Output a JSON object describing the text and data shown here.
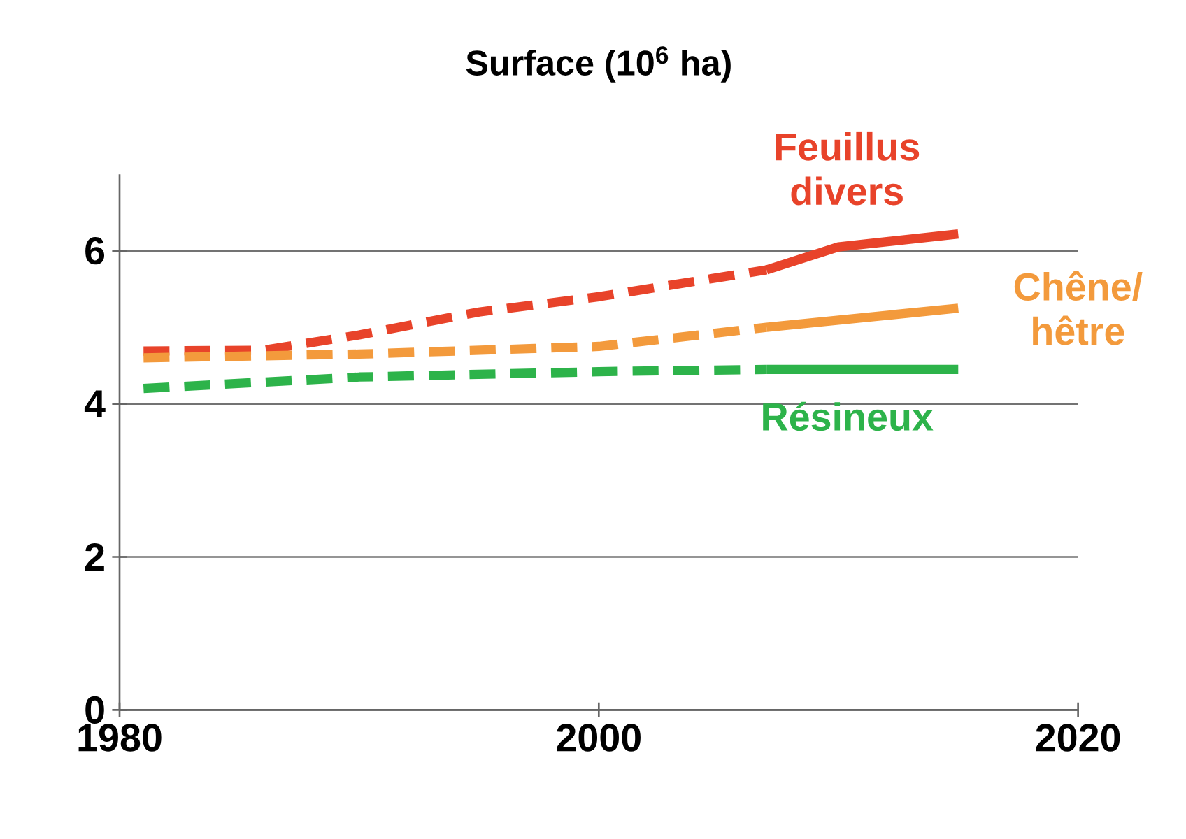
{
  "chart_data": {
    "type": "line",
    "title": "Surface (10$^{6}$ ha)",
    "xlim": [
      1980,
      2020
    ],
    "xticks": [
      1980,
      2000,
      2020
    ],
    "ylim": [
      0,
      7
    ],
    "yticks": [
      0,
      2,
      4,
      6
    ],
    "grid": "y",
    "legend": false,
    "marker": "none",
    "series": [
      {
        "color": "#e8432a",
        "line_style": "dashed",
        "x": [
          1981,
          1986,
          1990,
          1995,
          2000,
          2007
        ],
        "values": [
          4.69,
          4.7,
          4.9,
          5.2,
          5.4,
          5.75
        ]
      },
      {
        "name": "Feuillus divers",
        "color": "#e8432a",
        "line_style": "solid",
        "x": [
          2007,
          2010,
          2015
        ],
        "values": [
          5.75,
          6.05,
          6.22
        ]
      },
      {
        "color": "#f39a3c",
        "line_style": "dashed",
        "x": [
          1981,
          1990,
          2000,
          2007
        ],
        "values": [
          4.6,
          4.65,
          4.75,
          5.0
        ]
      },
      {
        "name": "Chêne/ hêtre",
        "color": "#f39a3c",
        "line_style": "solid",
        "x": [
          2007,
          2015
        ],
        "values": [
          5.0,
          5.25
        ]
      },
      {
        "color": "#2db34a",
        "line_style": "dashed",
        "x": [
          1981,
          1990,
          2000,
          2007
        ],
        "values": [
          4.2,
          4.35,
          4.42,
          4.45
        ]
      },
      {
        "name": "Résineux",
        "color": "#2db34a",
        "line_style": "solid",
        "x": [
          2007,
          2015
        ],
        "values": [
          4.45,
          4.45
        ]
      }
    ]
  }
}
